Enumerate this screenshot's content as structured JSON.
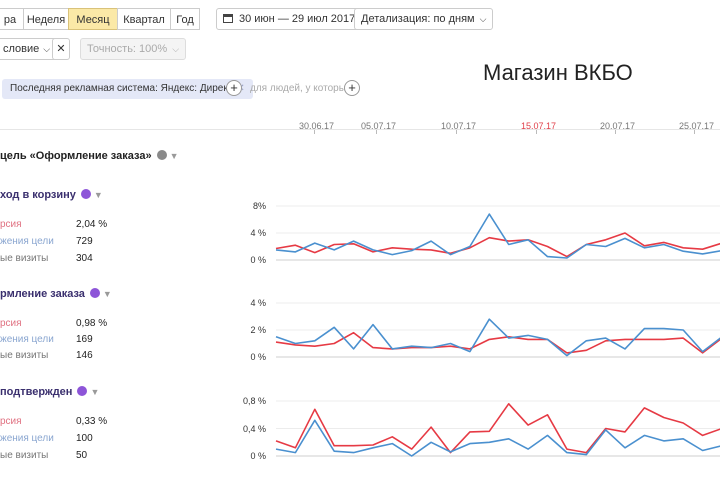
{
  "toolbar": {
    "periods": [
      {
        "label": "ра",
        "active": false
      },
      {
        "label": "Неделя",
        "active": false
      },
      {
        "label": "Месяц",
        "active": true
      },
      {
        "label": "Квартал",
        "active": false
      },
      {
        "label": "Год",
        "active": false
      }
    ],
    "date_range": "30 июн — 29 июл 2017",
    "detail_label": "Детализация: по дням"
  },
  "filters": {
    "dropdown_label": "словие",
    "accuracy_label": "Точность: 100%",
    "chip_label": "Последняя рекламная система: Яндекс: Директ",
    "hint_text": "для людей, у которых"
  },
  "brand_title": "Магазин ВКБО",
  "timeline": {
    "dates": [
      "30.06.17",
      "05.07.17",
      "10.07.17",
      "15.07.17",
      "20.07.17",
      "25.07.17"
    ],
    "highlight_index": 3
  },
  "goal_title": "цель «Оформление заказа»",
  "colors": {
    "red_series": "#e63a44",
    "blue_series": "#4a90cf",
    "accent_purple": "#8d55d8",
    "active_period": "#fbe9a7"
  },
  "metrics": [
    {
      "title": "ход в корзину",
      "rows": [
        {
          "label": "рсия",
          "value": "2,04 %"
        },
        {
          "label": "жения цели",
          "value": "729"
        },
        {
          "label": "ые визиты",
          "value": "304"
        }
      ]
    },
    {
      "title": "рмление заказа",
      "rows": [
        {
          "label": "рсия",
          "value": "0,98 %"
        },
        {
          "label": "жения цели",
          "value": "169"
        },
        {
          "label": "ые визиты",
          "value": "146"
        }
      ]
    },
    {
      "title": "подтвержден",
      "rows": [
        {
          "label": "рсия",
          "value": "0,33 %"
        },
        {
          "label": "жения цели",
          "value": "100"
        },
        {
          "label": "ые визиты",
          "value": "50"
        }
      ]
    }
  ],
  "chart_data": [
    {
      "type": "line",
      "y_ticks": [
        "8%",
        "4 %",
        "0 %"
      ],
      "ylim": [
        0,
        8
      ],
      "series": [
        {
          "color": "#e63a44",
          "values": [
            1.7,
            2.2,
            1.1,
            2.3,
            2.4,
            1.2,
            1.8,
            1.6,
            1.5,
            1.0,
            1.8,
            3.3,
            2.8,
            3.0,
            2.0,
            0.5,
            2.3,
            3.0,
            4.0,
            2.1,
            2.6,
            1.8,
            1.6,
            2.5
          ]
        },
        {
          "color": "#4a90cf",
          "values": [
            1.5,
            1.2,
            2.5,
            1.5,
            2.8,
            1.5,
            0.8,
            1.4,
            2.8,
            0.8,
            2.0,
            6.8,
            2.3,
            3.0,
            0.5,
            0.3,
            2.3,
            2.0,
            3.2,
            1.8,
            2.3,
            1.3,
            0.9,
            1.4
          ]
        }
      ]
    },
    {
      "type": "line",
      "y_ticks": [
        "4 %",
        "2 %",
        "0 %"
      ],
      "ylim": [
        0,
        4
      ],
      "series": [
        {
          "color": "#e63a44",
          "values": [
            1.1,
            0.9,
            0.8,
            1.0,
            1.8,
            0.7,
            0.6,
            0.7,
            0.7,
            0.8,
            0.6,
            1.3,
            1.5,
            1.3,
            1.3,
            0.3,
            0.5,
            1.2,
            1.3,
            1.3,
            1.3,
            1.4,
            0.3,
            1.4
          ]
        },
        {
          "color": "#4a90cf",
          "values": [
            1.5,
            1.0,
            1.2,
            2.2,
            0.6,
            2.4,
            0.6,
            0.8,
            0.7,
            1.0,
            0.4,
            2.8,
            1.4,
            1.6,
            1.3,
            0.1,
            1.2,
            1.4,
            0.6,
            2.1,
            2.1,
            2.0,
            0.4,
            1.5
          ]
        }
      ]
    },
    {
      "type": "line",
      "y_ticks": [
        "0,8 %",
        "0,4 %",
        "0 %"
      ],
      "ylim": [
        0,
        0.8
      ],
      "series": [
        {
          "color": "#e63a44",
          "values": [
            0.22,
            0.12,
            0.68,
            0.15,
            0.15,
            0.16,
            0.28,
            0.1,
            0.42,
            0.05,
            0.35,
            0.36,
            0.76,
            0.45,
            0.6,
            0.1,
            0.05,
            0.4,
            0.35,
            0.7,
            0.56,
            0.48,
            0.3,
            0.4
          ]
        },
        {
          "color": "#4a90cf",
          "values": [
            0.1,
            0.05,
            0.52,
            0.07,
            0.05,
            0.12,
            0.18,
            0.0,
            0.2,
            0.06,
            0.18,
            0.2,
            0.25,
            0.1,
            0.3,
            0.05,
            0.02,
            0.38,
            0.12,
            0.3,
            0.22,
            0.25,
            0.08,
            0.15
          ]
        }
      ]
    }
  ]
}
